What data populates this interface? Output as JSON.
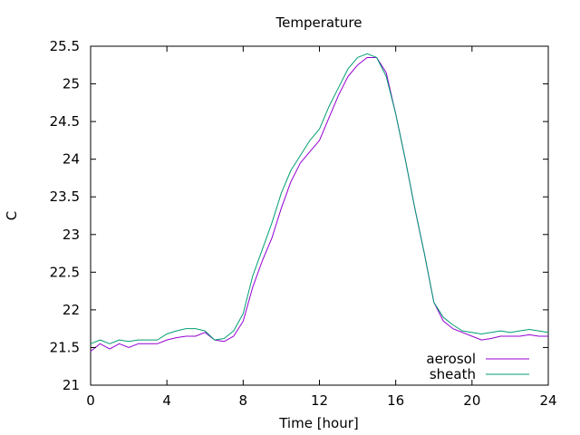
{
  "chart_data": {
    "type": "line",
    "title": "Temperature",
    "xlabel": "Time [hour]",
    "ylabel": "C",
    "xlim": [
      0,
      24
    ],
    "ylim": [
      21,
      25.5
    ],
    "xticks": [
      0,
      4,
      8,
      12,
      16,
      20,
      24
    ],
    "yticks": [
      21,
      21.5,
      22,
      22.5,
      23,
      23.5,
      24,
      24.5,
      25,
      25.5
    ],
    "xtick_labels": [
      "0",
      "4",
      "8",
      "12",
      "16",
      "20",
      "24"
    ],
    "ytick_labels": [
      "21",
      "21.5",
      "22",
      "22.5",
      "23",
      "23.5",
      "24",
      "24.5",
      "25",
      "25.5"
    ],
    "grid": false,
    "legend_position": "bottom-right",
    "series": [
      {
        "name": "aerosol",
        "color": "#9400d3",
        "x": [
          0,
          0.5,
          1,
          1.5,
          2,
          2.5,
          3,
          3.5,
          4,
          4.5,
          5,
          5.5,
          6,
          6.5,
          7,
          7.5,
          8,
          8.5,
          9,
          9.5,
          10,
          10.5,
          11,
          11.5,
          12,
          12.5,
          13,
          13.5,
          14,
          14.5,
          15,
          15.5,
          16,
          16.5,
          17,
          17.5,
          18,
          18.5,
          19,
          19.5,
          20,
          20.5,
          21,
          21.5,
          22,
          22.5,
          23,
          23.5,
          24
        ],
        "y": [
          21.45,
          21.55,
          21.48,
          21.55,
          21.5,
          21.55,
          21.55,
          21.55,
          21.6,
          21.63,
          21.65,
          21.65,
          21.7,
          21.6,
          21.58,
          21.65,
          21.85,
          22.3,
          22.65,
          22.95,
          23.35,
          23.7,
          23.95,
          24.1,
          24.25,
          24.55,
          24.85,
          25.1,
          25.25,
          25.35,
          25.35,
          25.15,
          24.6,
          24.0,
          23.35,
          22.75,
          22.1,
          21.85,
          21.75,
          21.7,
          21.65,
          21.6,
          21.62,
          21.65,
          21.65,
          21.65,
          21.67,
          21.65,
          21.65
        ]
      },
      {
        "name": "sheath",
        "color": "#009e73",
        "x": [
          0,
          0.5,
          1,
          1.5,
          2,
          2.5,
          3,
          3.5,
          4,
          4.5,
          5,
          5.5,
          6,
          6.5,
          7,
          7.5,
          8,
          8.5,
          9,
          9.5,
          10,
          10.5,
          11,
          11.5,
          12,
          12.5,
          13,
          13.5,
          14,
          14.5,
          15,
          15.5,
          16,
          16.5,
          17,
          17.5,
          18,
          18.5,
          19,
          19.5,
          20,
          20.5,
          21,
          21.5,
          22,
          22.5,
          23,
          23.5,
          24
        ],
        "y": [
          21.55,
          21.6,
          21.55,
          21.6,
          21.58,
          21.6,
          21.6,
          21.6,
          21.68,
          21.72,
          21.75,
          21.75,
          21.72,
          21.6,
          21.62,
          21.72,
          21.95,
          22.45,
          22.8,
          23.15,
          23.55,
          23.85,
          24.05,
          24.25,
          24.4,
          24.7,
          24.95,
          25.2,
          25.35,
          25.4,
          25.35,
          25.1,
          24.6,
          24.0,
          23.35,
          22.75,
          22.1,
          21.9,
          21.8,
          21.72,
          21.7,
          21.68,
          21.7,
          21.72,
          21.7,
          21.72,
          21.74,
          21.72,
          21.7
        ]
      }
    ]
  }
}
